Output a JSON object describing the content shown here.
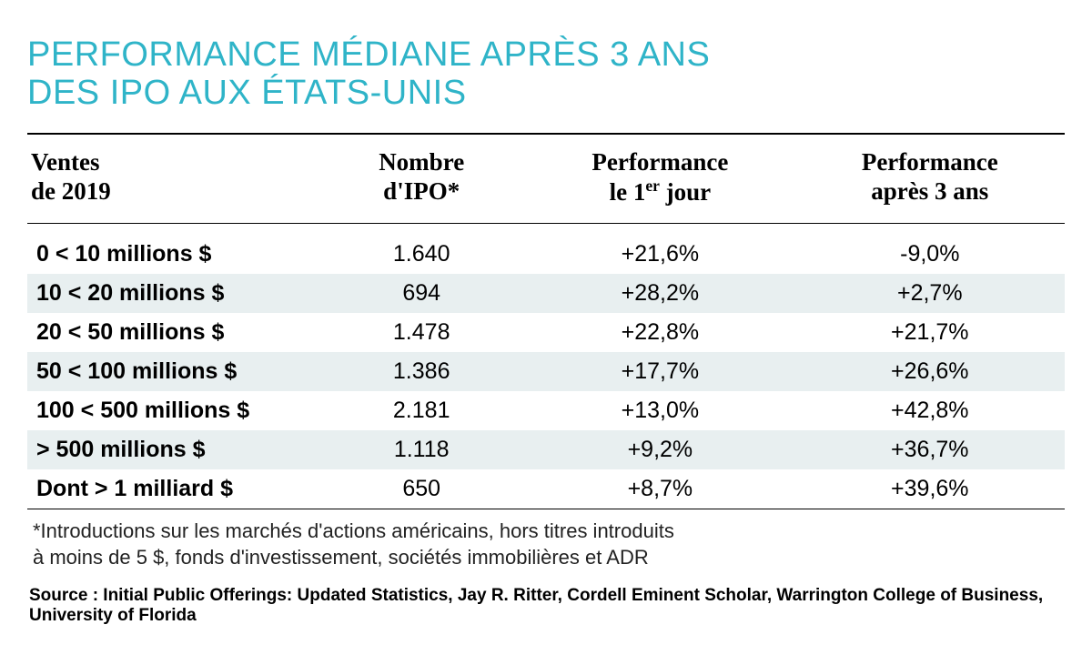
{
  "title_line1": "PERFORMANCE MÉDIANE APRÈS 3 ANS",
  "title_line2": "DES IPO AUX ÉTATS-UNIS",
  "title_color": "#2fb4c8",
  "table": {
    "columns": [
      {
        "l1": "Ventes",
        "l2": "de 2019"
      },
      {
        "l1": "Nombre",
        "l2": "d'IPO*"
      },
      {
        "l1": "Performance",
        "l2": "le 1er jour",
        "sup_index": 1
      },
      {
        "l1": "Performance",
        "l2": "après 3 ans"
      }
    ],
    "rows": [
      [
        "0 < 10 millions $",
        "1.640",
        "+21,6%",
        "-9,0%"
      ],
      [
        "10 < 20 millions $",
        "694",
        "+28,2%",
        "+2,7%"
      ],
      [
        "20 < 50 millions $",
        "1.478",
        "+22,8%",
        "+21,7%"
      ],
      [
        "50 < 100 millions $",
        "1.386",
        "+17,7%",
        "+26,6%"
      ],
      [
        "100 < 500 millions $",
        "2.181",
        "+13,0%",
        "+42,8%"
      ],
      [
        "> 500 millions $",
        "1.118",
        "+9,2%",
        "+36,7%"
      ],
      [
        "Dont > 1 milliard $",
        "650",
        "+8,7%",
        "+39,6%"
      ]
    ],
    "row_stripe_color": "#e8eff0",
    "col_widths": [
      "28%",
      "20%",
      "26%",
      "26%"
    ],
    "header_fontsize": 27,
    "cell_fontsize": 25
  },
  "footnote_l1": "*Introductions sur les marchés d'actions américains, hors titres introduits",
  "footnote_l2": " à moins de 5 $, fonds d'investissement, sociétés immobilières et ADR",
  "source": "Source : Initial Public Offerings: Updated Statistics, Jay R. Ritter, Cordell Eminent Scholar, Warrington College of Business, University of Florida"
}
